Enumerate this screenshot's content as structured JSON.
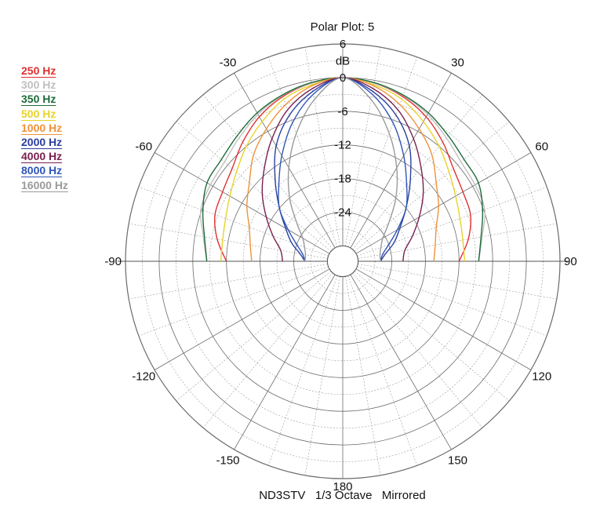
{
  "chart_data": {
    "type": "polar",
    "title": "Polar Plot: 5",
    "footer": "ND3STV   1/3 Octave   Mirrored",
    "radial_unit": "dB",
    "radial_range": [
      -30,
      6
    ],
    "radial_ticks": [
      6,
      0,
      -6,
      -12,
      -18,
      -24
    ],
    "angle_ticks": [
      0,
      30,
      60,
      90,
      120,
      150,
      180,
      -150,
      -120,
      -90,
      -60,
      -30
    ],
    "angle_tick_labels": [
      "",
      "30",
      "60",
      "90",
      "120",
      "150",
      "180",
      "-150",
      "-120",
      "-90",
      "-60",
      "-30"
    ],
    "mirrored": true,
    "grid": true,
    "legend_position": "top-left",
    "angles": [
      0,
      10,
      20,
      30,
      40,
      50,
      60,
      70,
      80,
      90
    ],
    "series": [
      {
        "name": "250 Hz",
        "color": "#e03030",
        "values": [
          0,
          -0.5,
          -1.5,
          -3,
          -5,
          -7,
          -8,
          -8.5,
          -10,
          -12
        ]
      },
      {
        "name": "300 Hz",
        "color": "#c0c0c0",
        "values": [
          0,
          -0.5,
          -1.3,
          -2.5,
          -4,
          -5.2,
          -5.5,
          -5.8,
          -7.5,
          -8.5
        ]
      },
      {
        "name": "350 Hz",
        "color": "#1e6b3a",
        "values": [
          0,
          -0.4,
          -1.2,
          -2.2,
          -3.5,
          -4.5,
          -4.8,
          -6.2,
          -7.7,
          -8.5
        ]
      },
      {
        "name": "500 Hz",
        "color": "#e8d22a",
        "values": [
          0,
          -0.8,
          -2,
          -4,
          -6,
          -8,
          -9.5,
          -10.5,
          -11,
          -11
        ]
      },
      {
        "name": "1000 Hz",
        "color": "#f0923a",
        "values": [
          0,
          -1,
          -3,
          -5.5,
          -8,
          -11,
          -13,
          -15,
          -16,
          -16.5
        ]
      },
      {
        "name": "2000 Hz",
        "color": "#2a3fa0",
        "values": [
          0,
          -2,
          -5,
          -9,
          -14,
          -18,
          -21,
          -23,
          -25,
          -26
        ]
      },
      {
        "name": "4000 Hz",
        "color": "#7a2050",
        "values": [
          0,
          -1.5,
          -4,
          -7.5,
          -11,
          -14,
          -17,
          -19.5,
          -21.5,
          -22
        ]
      },
      {
        "name": "8000 Hz",
        "color": "#2e55b8",
        "values": [
          0,
          -2.5,
          -6.5,
          -11,
          -15,
          -18,
          -21.5,
          -24,
          -25.5,
          -26
        ]
      },
      {
        "name": "16000 Hz",
        "color": "#9a9a9a",
        "values": [
          0,
          -3.5,
          -8.5,
          -13.5,
          -18,
          -22,
          -24.5,
          -25.5,
          -26,
          -26
        ]
      }
    ]
  }
}
